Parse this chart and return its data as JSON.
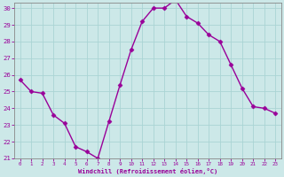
{
  "x": [
    0,
    1,
    2,
    3,
    4,
    5,
    6,
    7,
    8,
    9,
    10,
    11,
    12,
    13,
    14,
    15,
    16,
    17,
    18,
    19,
    20,
    21,
    22,
    23
  ],
  "y": [
    25.7,
    25.0,
    24.9,
    23.6,
    23.1,
    21.7,
    21.4,
    21.0,
    23.2,
    25.4,
    27.5,
    29.2,
    30.0,
    30.0,
    30.5,
    29.5,
    29.1,
    28.4,
    28.0,
    26.6,
    25.2,
    24.1,
    24.0,
    23.7
  ],
  "line_color": "#990099",
  "bg_color": "#cce8e8",
  "plot_bg_color": "#cce8e8",
  "grid_color": "#aad4d4",
  "xlabel": "Windchill (Refroidissement éolien,°C)",
  "xlabel_color": "#990099",
  "tick_color": "#990099",
  "spine_color": "#888888",
  "ylim": [
    21,
    30
  ],
  "xlim": [
    -0.5,
    23.5
  ],
  "yticks": [
    21,
    22,
    23,
    24,
    25,
    26,
    27,
    28,
    29,
    30
  ],
  "xticks": [
    0,
    1,
    2,
    3,
    4,
    5,
    6,
    7,
    8,
    9,
    10,
    11,
    12,
    13,
    14,
    15,
    16,
    17,
    18,
    19,
    20,
    21,
    22,
    23
  ],
  "marker": "D",
  "marker_size": 2.5,
  "line_width": 1.0
}
